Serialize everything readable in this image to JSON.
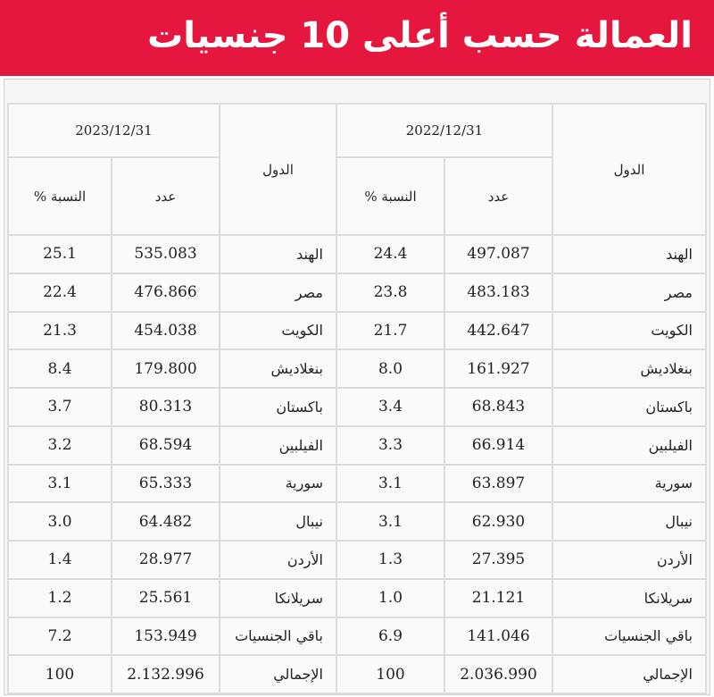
{
  "header": {
    "title": "العمالة حسب أعلى 10 جنسيات"
  },
  "table": {
    "groups": [
      {
        "country_label": "الدول",
        "date": "2022/12/31",
        "count_label": "عدد",
        "percent_label": "النسبة %"
      },
      {
        "country_label": "الدول",
        "date": "2023/12/31",
        "count_label": "عدد",
        "percent_label": "النسبة %"
      }
    ],
    "rows": [
      [
        [
          "الهند",
          "497.087",
          "24.4"
        ],
        [
          "الهند",
          "535.083",
          "25.1"
        ]
      ],
      [
        [
          "مصر",
          "483.183",
          "23.8"
        ],
        [
          "مصر",
          "476.866",
          "22.4"
        ]
      ],
      [
        [
          "الكويت",
          "442.647",
          "21.7"
        ],
        [
          "الكويت",
          "454.038",
          "21.3"
        ]
      ],
      [
        [
          "بنغلاديش",
          "161.927",
          "8.0"
        ],
        [
          "بنغلاديش",
          "179.800",
          "8.4"
        ]
      ],
      [
        [
          "باكستان",
          "68.843",
          "3.4"
        ],
        [
          "باكستان",
          "80.313",
          "3.7"
        ]
      ],
      [
        [
          "الفيلبين",
          "66.914",
          "3.3"
        ],
        [
          "الفيلبين",
          "68.594",
          "3.2"
        ]
      ],
      [
        [
          "سورية",
          "63.897",
          "3.1"
        ],
        [
          "سورية",
          "65.333",
          "3.1"
        ]
      ],
      [
        [
          "نيبال",
          "62.930",
          "3.1"
        ],
        [
          "نيبال",
          "64.482",
          "3.0"
        ]
      ],
      [
        [
          "الأردن",
          "27.395",
          "1.3"
        ],
        [
          "الأردن",
          "28.977",
          "1.4"
        ]
      ],
      [
        [
          "سريلانكا",
          "21.121",
          "1.0"
        ],
        [
          "سريلانكا",
          "25.561",
          "1.2"
        ]
      ],
      [
        [
          "باقي الجنسيات",
          "141.046",
          "6.9"
        ],
        [
          "باقي الجنسيات",
          "153.949",
          "7.2"
        ]
      ],
      [
        [
          "الإجمالي",
          "2.036.990",
          "100"
        ],
        [
          "الإجمالي",
          "2.132.996",
          "100"
        ]
      ]
    ]
  }
}
